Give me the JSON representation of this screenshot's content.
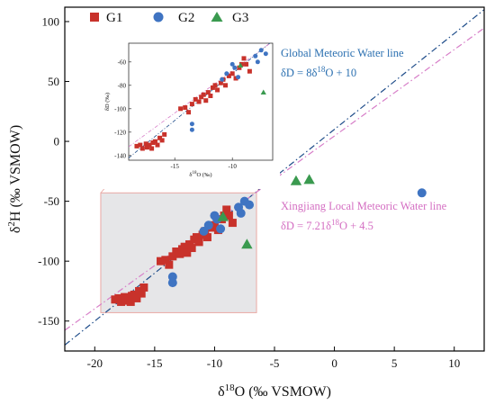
{
  "chart_data": {
    "type": "scatter",
    "xlabel": "δ18O (‰ VSMOW)",
    "xlabel_parts": {
      "pre": "δ",
      "sup": "18",
      "post": "O (‰ VSMOW)"
    },
    "ylabel": "δ2H (‰ VSMOW)",
    "ylabel_parts": {
      "pre": "δ",
      "sup": "2",
      "post": "H (‰ VSMOW)"
    },
    "xlim": [
      -22.5,
      12.5
    ],
    "ylim": [
      -175,
      112
    ],
    "xticks": [
      -20,
      -15,
      -10,
      -5,
      0,
      5,
      10
    ],
    "yticks": [
      -150,
      -100,
      -50,
      0,
      50,
      100
    ],
    "legend": {
      "placement": "top-left"
    },
    "series": [
      {
        "name": "G1",
        "marker": "square",
        "color": "#c8322b",
        "points": [
          [
            -18.3,
            -132
          ],
          [
            -18.0,
            -131
          ],
          [
            -17.8,
            -134
          ],
          [
            -17.5,
            -130
          ],
          [
            -17.4,
            -133
          ],
          [
            -17.2,
            -131
          ],
          [
            -17.0,
            -134
          ],
          [
            -16.9,
            -129
          ],
          [
            -16.7,
            -128
          ],
          [
            -16.5,
            -131
          ],
          [
            -16.3,
            -125
          ],
          [
            -16.1,
            -127
          ],
          [
            -15.9,
            -122
          ],
          [
            -14.5,
            -100
          ],
          [
            -14.1,
            -99
          ],
          [
            -13.8,
            -103
          ],
          [
            -13.5,
            -96
          ],
          [
            -13.2,
            -92
          ],
          [
            -12.9,
            -94
          ],
          [
            -12.7,
            -90
          ],
          [
            -12.5,
            -88
          ],
          [
            -12.3,
            -93
          ],
          [
            -12.1,
            -86
          ],
          [
            -11.9,
            -89
          ],
          [
            -11.7,
            -82
          ],
          [
            -11.5,
            -80
          ],
          [
            -11.3,
            -84
          ],
          [
            -11.0,
            -78
          ],
          [
            -10.8,
            -75
          ],
          [
            -10.6,
            -80
          ],
          [
            -10.3,
            -72
          ],
          [
            -10.0,
            -70
          ],
          [
            -9.7,
            -74
          ],
          [
            -9.4,
            -65
          ],
          [
            -9.2,
            -62
          ],
          [
            -9.0,
            -57
          ],
          [
            -8.8,
            -62
          ],
          [
            -8.5,
            -68
          ]
        ]
      },
      {
        "name": "G2",
        "marker": "circle",
        "color": "#3f74c2",
        "points": [
          [
            -13.5,
            -113
          ],
          [
            -13.5,
            -118
          ],
          [
            -10.9,
            -75
          ],
          [
            -10.5,
            -70
          ],
          [
            -10.0,
            -62
          ],
          [
            -9.8,
            -65
          ],
          [
            -9.5,
            -73
          ],
          [
            -8.0,
            -55
          ],
          [
            -7.8,
            -60
          ],
          [
            -7.5,
            -50
          ],
          [
            -7.1,
            -53
          ],
          [
            7.3,
            -43
          ]
        ]
      },
      {
        "name": "G3",
        "marker": "triangle",
        "color": "#3a9a4f",
        "points": [
          [
            -7.3,
            -86
          ],
          [
            -3.2,
            -33
          ],
          [
            -2.1,
            -32
          ],
          [
            -9.3,
            -63
          ]
        ]
      }
    ],
    "lines": [
      {
        "name": "Global Meteoric Water line",
        "equation": "δD = 8δ18O + 10",
        "equation_parts": {
          "pre": "δD = 8δ",
          "sup": "18",
          "post": "O + 10"
        },
        "slope": 8,
        "intercept": 10,
        "style": "dash-dot",
        "color": "#1f4d8a",
        "label_color": "#2a6fb0"
      },
      {
        "name": "Xingjiang Local Meteoric Water line",
        "equation": "δD = 7.21δ18O + 4.5",
        "equation_parts": {
          "pre": "δD = 7.21δ",
          "sup": "18",
          "post": "O + 4.5"
        },
        "slope": 7.21,
        "intercept": 4.5,
        "style": "dash-dot",
        "color": "#d77ec8",
        "label_color": "#d46ec2"
      }
    ],
    "zoom_box": {
      "xlim": [
        -19.5,
        -6.5
      ],
      "ylim": [
        -143,
        -43
      ]
    },
    "inset": {
      "xlim": [
        -19,
        -6.5
      ],
      "ylim": [
        -144,
        -44
      ],
      "xticks": [
        -15,
        -10
      ],
      "yticks": [
        -140,
        -120,
        -100,
        -80,
        -60
      ],
      "xlabel": "δ18O (‰)",
      "xlabel_parts": {
        "pre": "δ",
        "sup": "18",
        "post": "O (‰)"
      },
      "ylabel": "δD (‰)"
    }
  },
  "colors": {
    "zoom_fill": "#e6e6e8",
    "zoom_stroke": "#e9a9a4",
    "axis": "#000000"
  }
}
